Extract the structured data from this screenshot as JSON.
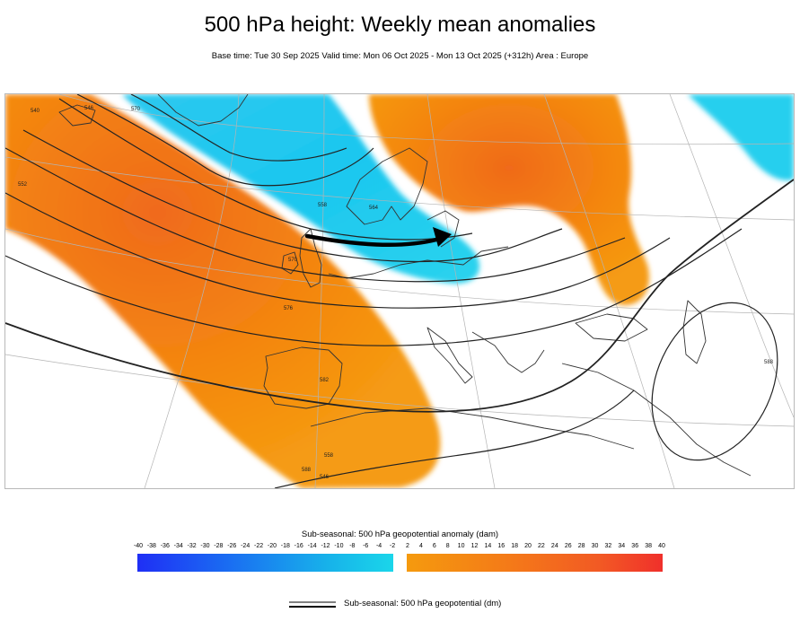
{
  "header": {
    "title": "500 hPa height: Weekly mean anomalies",
    "subtitle": "Base time: Tue 30 Sep 2025 Valid time: Mon 06 Oct 2025 - Mon 13 Oct 2025 (+312h) Area : Europe"
  },
  "map": {
    "area": "Europe",
    "anomaly_regions": [
      {
        "sign": "positive",
        "location": "Eastern Atlantic towards Iberia and NW Africa"
      },
      {
        "sign": "negative",
        "location": "Greenland Sea, Scandinavia and North Sea"
      },
      {
        "sign": "positive",
        "location": "Northwest Russia and Baltic region"
      },
      {
        "sign": "negative",
        "location": "Northern Urals"
      }
    ],
    "contour_labels": [
      "540",
      "546",
      "552",
      "558",
      "564",
      "570",
      "576",
      "582",
      "588",
      "588",
      "570",
      "546",
      "558"
    ],
    "arrow": "flow from the British Isles towards northern Germany / Poland",
    "colors": {
      "negative": "#1ad1ef",
      "positive": "#f4880f",
      "contour": "#222222"
    }
  },
  "legend": {
    "title": "Sub-seasonal: 500 hPa geopotential anomaly (dam)",
    "negative_ticks": [
      "-40",
      "-38",
      "-36",
      "-34",
      "-32",
      "-30",
      "-28",
      "-26",
      "-24",
      "-22",
      "-20",
      "-18",
      "-16",
      "-14",
      "-12",
      "-10",
      "-8",
      "-6",
      "-4",
      "-2"
    ],
    "positive_ticks": [
      "2",
      "4",
      "6",
      "8",
      "10",
      "12",
      "14",
      "16",
      "18",
      "20",
      "22",
      "24",
      "26",
      "28",
      "30",
      "32",
      "34",
      "36",
      "38",
      "40"
    ],
    "negative_colors": [
      "#1f2ff5",
      "#1ad6ea"
    ],
    "positive_colors": [
      "#f59a0e",
      "#f0302b"
    ],
    "contour_label": "Sub-seasonal: 500 hPa geopotential (dm)"
  }
}
